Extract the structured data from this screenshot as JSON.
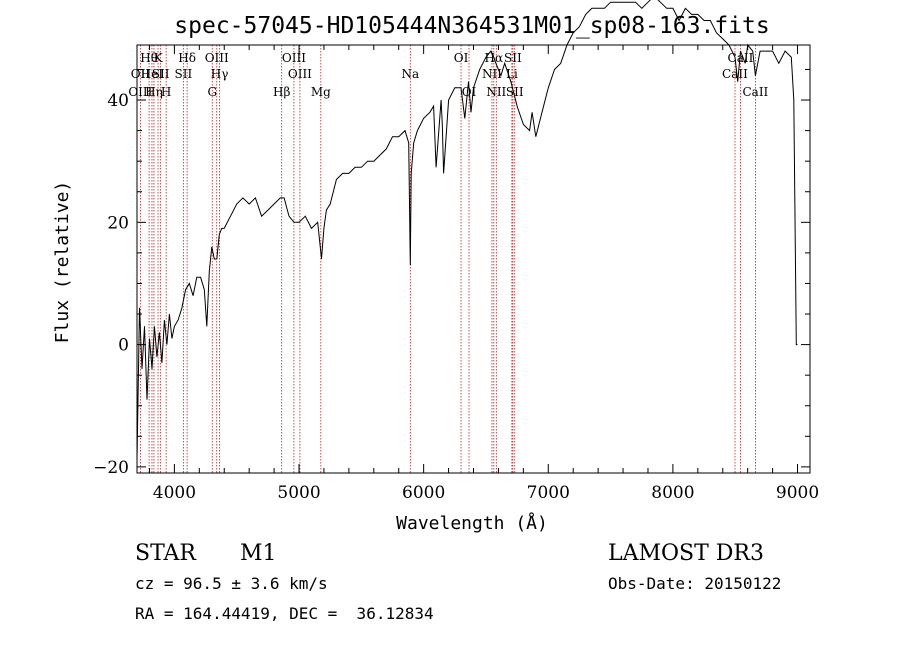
{
  "chart_data": {
    "type": "line",
    "title": "spec-57045-HD105444N364531M01_sp08-163.fits",
    "xlabel": "Wavelength (Å)",
    "ylabel": "Flux (relative)",
    "xlim": [
      3700,
      9100
    ],
    "ylim": [
      -21,
      49
    ],
    "x_ticks": [
      4000,
      5000,
      6000,
      7000,
      8000,
      9000
    ],
    "y_ticks": [
      -20,
      0,
      20,
      40
    ],
    "line_color": "#000000",
    "marker_color": "#b22222",
    "series": [
      {
        "name": "spectrum",
        "x": [
          3700,
          3720,
          3740,
          3760,
          3780,
          3800,
          3820,
          3840,
          3860,
          3880,
          3900,
          3920,
          3940,
          3960,
          3980,
          4000,
          4030,
          4060,
          4090,
          4120,
          4150,
          4180,
          4210,
          4240,
          4260,
          4280,
          4300,
          4320,
          4340,
          4360,
          4380,
          4400,
          4450,
          4500,
          4550,
          4600,
          4650,
          4700,
          4750,
          4800,
          4850,
          4880,
          4920,
          4960,
          5000,
          5050,
          5100,
          5150,
          5180,
          5200,
          5220,
          5250,
          5300,
          5350,
          5400,
          5450,
          5500,
          5550,
          5600,
          5650,
          5700,
          5750,
          5800,
          5850,
          5880,
          5893,
          5900,
          5920,
          5950,
          6000,
          6050,
          6080,
          6100,
          6140,
          6150,
          6160,
          6200,
          6250,
          6300,
          6330,
          6360,
          6380,
          6400,
          6450,
          6500,
          6540,
          6563,
          6580,
          6620,
          6650,
          6700,
          6750,
          6800,
          6850,
          6870,
          6900,
          6950,
          7000,
          7050,
          7100,
          7150,
          7200,
          7250,
          7300,
          7350,
          7400,
          7450,
          7500,
          7550,
          7600,
          7650,
          7700,
          7750,
          7800,
          7850,
          7900,
          7950,
          8000,
          8050,
          8100,
          8150,
          8200,
          8250,
          8300,
          8350,
          8400,
          8450,
          8498,
          8520,
          8542,
          8580,
          8600,
          8640,
          8662,
          8700,
          8750,
          8800,
          8850,
          8900,
          8950,
          8970,
          8990,
          9000
        ],
        "y": [
          -19,
          6,
          -4,
          3,
          -9,
          1,
          -4,
          3,
          -2,
          2,
          -3,
          4,
          0,
          5,
          1,
          3,
          4,
          6,
          9,
          10,
          8,
          11,
          11,
          9,
          3,
          12,
          16,
          14,
          14,
          18,
          19,
          19,
          21,
          23,
          24,
          23,
          24,
          21,
          22,
          23,
          24,
          24,
          21,
          20,
          20,
          21,
          19,
          20,
          14,
          19,
          22,
          23,
          27,
          28,
          28,
          29,
          29,
          30,
          30,
          31,
          32,
          34,
          34,
          35,
          33,
          13,
          28,
          33,
          35,
          37,
          38,
          39,
          29,
          40,
          36,
          28,
          40,
          42,
          42,
          37,
          43,
          38,
          42,
          45,
          47,
          48,
          47,
          46,
          44,
          46,
          43,
          39,
          36,
          35,
          38,
          34,
          38,
          42,
          45,
          46,
          49,
          51,
          52,
          54,
          55,
          55,
          55,
          56,
          56,
          56,
          56,
          56,
          55,
          56,
          57,
          56,
          55,
          55,
          53,
          55,
          54,
          54,
          53,
          53,
          51,
          50,
          49,
          47,
          43,
          48,
          46,
          49,
          48,
          44,
          48,
          48,
          48,
          46,
          48,
          47,
          40,
          0,
          0
        ]
      }
    ],
    "line_markers": [
      {
        "name": "OII",
        "x": 3727,
        "row": 2
      },
      {
        "name": "OIII",
        "x": 3727,
        "row": 3
      },
      {
        "name": "Hθ",
        "x": 3797,
        "row": 1
      },
      {
        "name": "HeI",
        "x": 3820,
        "row": 2
      },
      {
        "name": "Hη",
        "x": 3836,
        "row": 3
      },
      {
        "name": "K",
        "x": 3869,
        "row": 1
      },
      {
        "name": "SII",
        "x": 3890,
        "row": 2
      },
      {
        "name": "H",
        "x": 3934,
        "row": 3
      },
      {
        "name": "Hδ",
        "x": 4102,
        "row": 1
      },
      {
        "name": "SII",
        "x": 4072,
        "row": 2
      },
      {
        "name": "OIII",
        "x": 4340,
        "row": 1
      },
      {
        "name": "Hγ",
        "x": 4363,
        "row": 2
      },
      {
        "name": "G",
        "x": 4304,
        "row": 3
      },
      {
        "name": "Hβ",
        "x": 4861,
        "row": 3
      },
      {
        "name": "OIII",
        "x": 4959,
        "row": 1
      },
      {
        "name": "OIII",
        "x": 5007,
        "row": 2
      },
      {
        "name": "Mg",
        "x": 5175,
        "row": 3
      },
      {
        "name": "Na",
        "x": 5893,
        "row": 2
      },
      {
        "name": "OI",
        "x": 6300,
        "row": 1
      },
      {
        "name": "OI",
        "x": 6364,
        "row": 3
      },
      {
        "name": "Hα",
        "x": 6563,
        "row": 1
      },
      {
        "name": "NII",
        "x": 6548,
        "row": 2
      },
      {
        "name": "NII",
        "x": 6583,
        "row": 3
      },
      {
        "name": "SII",
        "x": 6716,
        "row": 1
      },
      {
        "name": "Li",
        "x": 6708,
        "row": 2
      },
      {
        "name": "SII",
        "x": 6731,
        "row": 3
      },
      {
        "name": "CaII",
        "x": 8542,
        "row": 1
      },
      {
        "name": "CaII",
        "x": 8498,
        "row": 2
      },
      {
        "name": "CaII",
        "x": 8662,
        "row": 3
      }
    ]
  },
  "info": {
    "object_type": "STAR",
    "subclass": "M1",
    "survey": "LAMOST DR3",
    "redshift": "cz = 96.5 ± 3.6 km/s",
    "obs_date": "Obs-Date: 20150122",
    "coords": "RA = 164.44419, DEC =  36.12834"
  }
}
